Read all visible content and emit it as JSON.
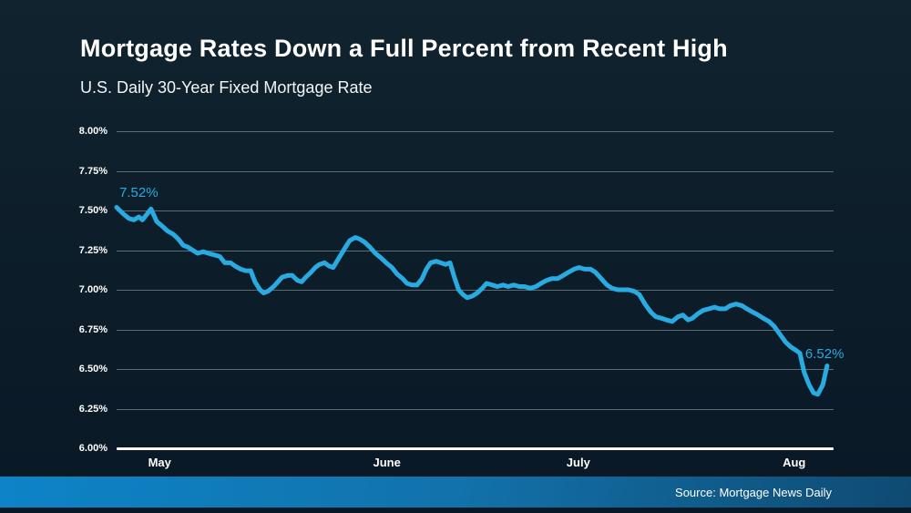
{
  "header": {
    "title": "Mortgage Rates Down a Full Percent from Recent High",
    "subtitle": "U.S. Daily 30-Year Fixed Mortgage Rate"
  },
  "footer": {
    "source": "Source: Mortgage News Daily"
  },
  "colors": {
    "background_top": "#10232f",
    "background_bottom": "#091826",
    "line": "#29abe2",
    "annotation_text": "#29abe2",
    "gridline": "#aab9c3",
    "axis_baseline": "#ffffff",
    "text": "#ffffff",
    "footer_gradient_left": "#0d84c8",
    "footer_gradient_right": "#0f4a72"
  },
  "chart_data": {
    "type": "line",
    "title": "Mortgage Rates Down a Full Percent from Recent High",
    "subtitle": "U.S. Daily 30-Year Fixed Mortgage Rate",
    "xlabel": "",
    "ylabel": "",
    "grid": true,
    "legend": false,
    "y_axis": {
      "min": 6.0,
      "max": 8.0,
      "tick_step": 0.25,
      "unit": "%",
      "tick_labels": [
        "8.00%",
        "7.75%",
        "7.50%",
        "7.25%",
        "7.00%",
        "6.75%",
        "6.50%",
        "6.25%",
        "6.00%"
      ]
    },
    "x_axis": {
      "tick_labels": [
        "May",
        "June",
        "July",
        "Aug"
      ],
      "tick_positions": [
        0.06,
        0.377,
        0.644,
        0.945
      ]
    },
    "series": [
      {
        "name": "U.S. Daily 30-Year Fixed Mortgage Rate",
        "color": "#29abe2",
        "points": [
          [
            0.0,
            7.52
          ],
          [
            0.009,
            7.48
          ],
          [
            0.017,
            7.45
          ],
          [
            0.024,
            7.44
          ],
          [
            0.031,
            7.46
          ],
          [
            0.036,
            7.44
          ],
          [
            0.048,
            7.51
          ],
          [
            0.056,
            7.43
          ],
          [
            0.064,
            7.4
          ],
          [
            0.071,
            7.37
          ],
          [
            0.079,
            7.35
          ],
          [
            0.086,
            7.32
          ],
          [
            0.093,
            7.28
          ],
          [
            0.099,
            7.27
          ],
          [
            0.106,
            7.25
          ],
          [
            0.113,
            7.23
          ],
          [
            0.121,
            7.24
          ],
          [
            0.128,
            7.23
          ],
          [
            0.136,
            7.22
          ],
          [
            0.144,
            7.21
          ],
          [
            0.151,
            7.17
          ],
          [
            0.159,
            7.17
          ],
          [
            0.165,
            7.15
          ],
          [
            0.173,
            7.13
          ],
          [
            0.18,
            7.12
          ],
          [
            0.187,
            7.12
          ],
          [
            0.193,
            7.05
          ],
          [
            0.2,
            7.0
          ],
          [
            0.205,
            6.98
          ],
          [
            0.211,
            6.99
          ],
          [
            0.219,
            7.02
          ],
          [
            0.225,
            7.05
          ],
          [
            0.231,
            7.08
          ],
          [
            0.239,
            7.09
          ],
          [
            0.245,
            7.09
          ],
          [
            0.252,
            7.06
          ],
          [
            0.258,
            7.05
          ],
          [
            0.264,
            7.08
          ],
          [
            0.271,
            7.11
          ],
          [
            0.277,
            7.14
          ],
          [
            0.283,
            7.16
          ],
          [
            0.29,
            7.17
          ],
          [
            0.296,
            7.15
          ],
          [
            0.302,
            7.14
          ],
          [
            0.31,
            7.2
          ],
          [
            0.318,
            7.26
          ],
          [
            0.325,
            7.31
          ],
          [
            0.333,
            7.33
          ],
          [
            0.339,
            7.32
          ],
          [
            0.346,
            7.3
          ],
          [
            0.353,
            7.27
          ],
          [
            0.361,
            7.23
          ],
          [
            0.369,
            7.2
          ],
          [
            0.376,
            7.17
          ],
          [
            0.384,
            7.14
          ],
          [
            0.391,
            7.1
          ],
          [
            0.399,
            7.07
          ],
          [
            0.405,
            7.04
          ],
          [
            0.412,
            7.03
          ],
          [
            0.419,
            7.03
          ],
          [
            0.426,
            7.07
          ],
          [
            0.432,
            7.13
          ],
          [
            0.438,
            7.17
          ],
          [
            0.446,
            7.18
          ],
          [
            0.452,
            7.17
          ],
          [
            0.459,
            7.16
          ],
          [
            0.465,
            7.17
          ],
          [
            0.471,
            7.08
          ],
          [
            0.477,
            7.0
          ],
          [
            0.483,
            6.97
          ],
          [
            0.489,
            6.95
          ],
          [
            0.496,
            6.96
          ],
          [
            0.503,
            6.98
          ],
          [
            0.51,
            7.01
          ],
          [
            0.516,
            7.04
          ],
          [
            0.524,
            7.03
          ],
          [
            0.531,
            7.02
          ],
          [
            0.539,
            7.03
          ],
          [
            0.546,
            7.02
          ],
          [
            0.554,
            7.03
          ],
          [
            0.562,
            7.02
          ],
          [
            0.569,
            7.02
          ],
          [
            0.577,
            7.01
          ],
          [
            0.585,
            7.02
          ],
          [
            0.592,
            7.04
          ],
          [
            0.6,
            7.06
          ],
          [
            0.607,
            7.07
          ],
          [
            0.615,
            7.07
          ],
          [
            0.623,
            7.09
          ],
          [
            0.63,
            7.11
          ],
          [
            0.638,
            7.13
          ],
          [
            0.645,
            7.14
          ],
          [
            0.653,
            7.13
          ],
          [
            0.661,
            7.13
          ],
          [
            0.668,
            7.11
          ],
          [
            0.676,
            7.07
          ],
          [
            0.684,
            7.03
          ],
          [
            0.691,
            7.01
          ],
          [
            0.699,
            7.0
          ],
          [
            0.707,
            7.0
          ],
          [
            0.714,
            7.0
          ],
          [
            0.722,
            6.99
          ],
          [
            0.729,
            6.97
          ],
          [
            0.737,
            6.91
          ],
          [
            0.745,
            6.86
          ],
          [
            0.752,
            6.83
          ],
          [
            0.76,
            6.82
          ],
          [
            0.767,
            6.81
          ],
          [
            0.775,
            6.8
          ],
          [
            0.783,
            6.83
          ],
          [
            0.79,
            6.84
          ],
          [
            0.797,
            6.81
          ],
          [
            0.803,
            6.82
          ],
          [
            0.811,
            6.85
          ],
          [
            0.818,
            6.87
          ],
          [
            0.826,
            6.88
          ],
          [
            0.834,
            6.89
          ],
          [
            0.841,
            6.88
          ],
          [
            0.849,
            6.88
          ],
          [
            0.856,
            6.9
          ],
          [
            0.864,
            6.91
          ],
          [
            0.872,
            6.9
          ],
          [
            0.879,
            6.88
          ],
          [
            0.887,
            6.86
          ],
          [
            0.895,
            6.84
          ],
          [
            0.902,
            6.82
          ],
          [
            0.91,
            6.8
          ],
          [
            0.917,
            6.77
          ],
          [
            0.925,
            6.72
          ],
          [
            0.933,
            6.67
          ],
          [
            0.94,
            6.64
          ],
          [
            0.947,
            6.62
          ],
          [
            0.953,
            6.6
          ],
          [
            0.959,
            6.48
          ],
          [
            0.966,
            6.4
          ],
          [
            0.972,
            6.35
          ],
          [
            0.978,
            6.34
          ],
          [
            0.985,
            6.4
          ],
          [
            0.991,
            6.52
          ]
        ]
      }
    ],
    "annotations": [
      {
        "text": "7.52%",
        "anchor": "first"
      },
      {
        "text": "6.52%",
        "anchor": "last"
      }
    ]
  }
}
